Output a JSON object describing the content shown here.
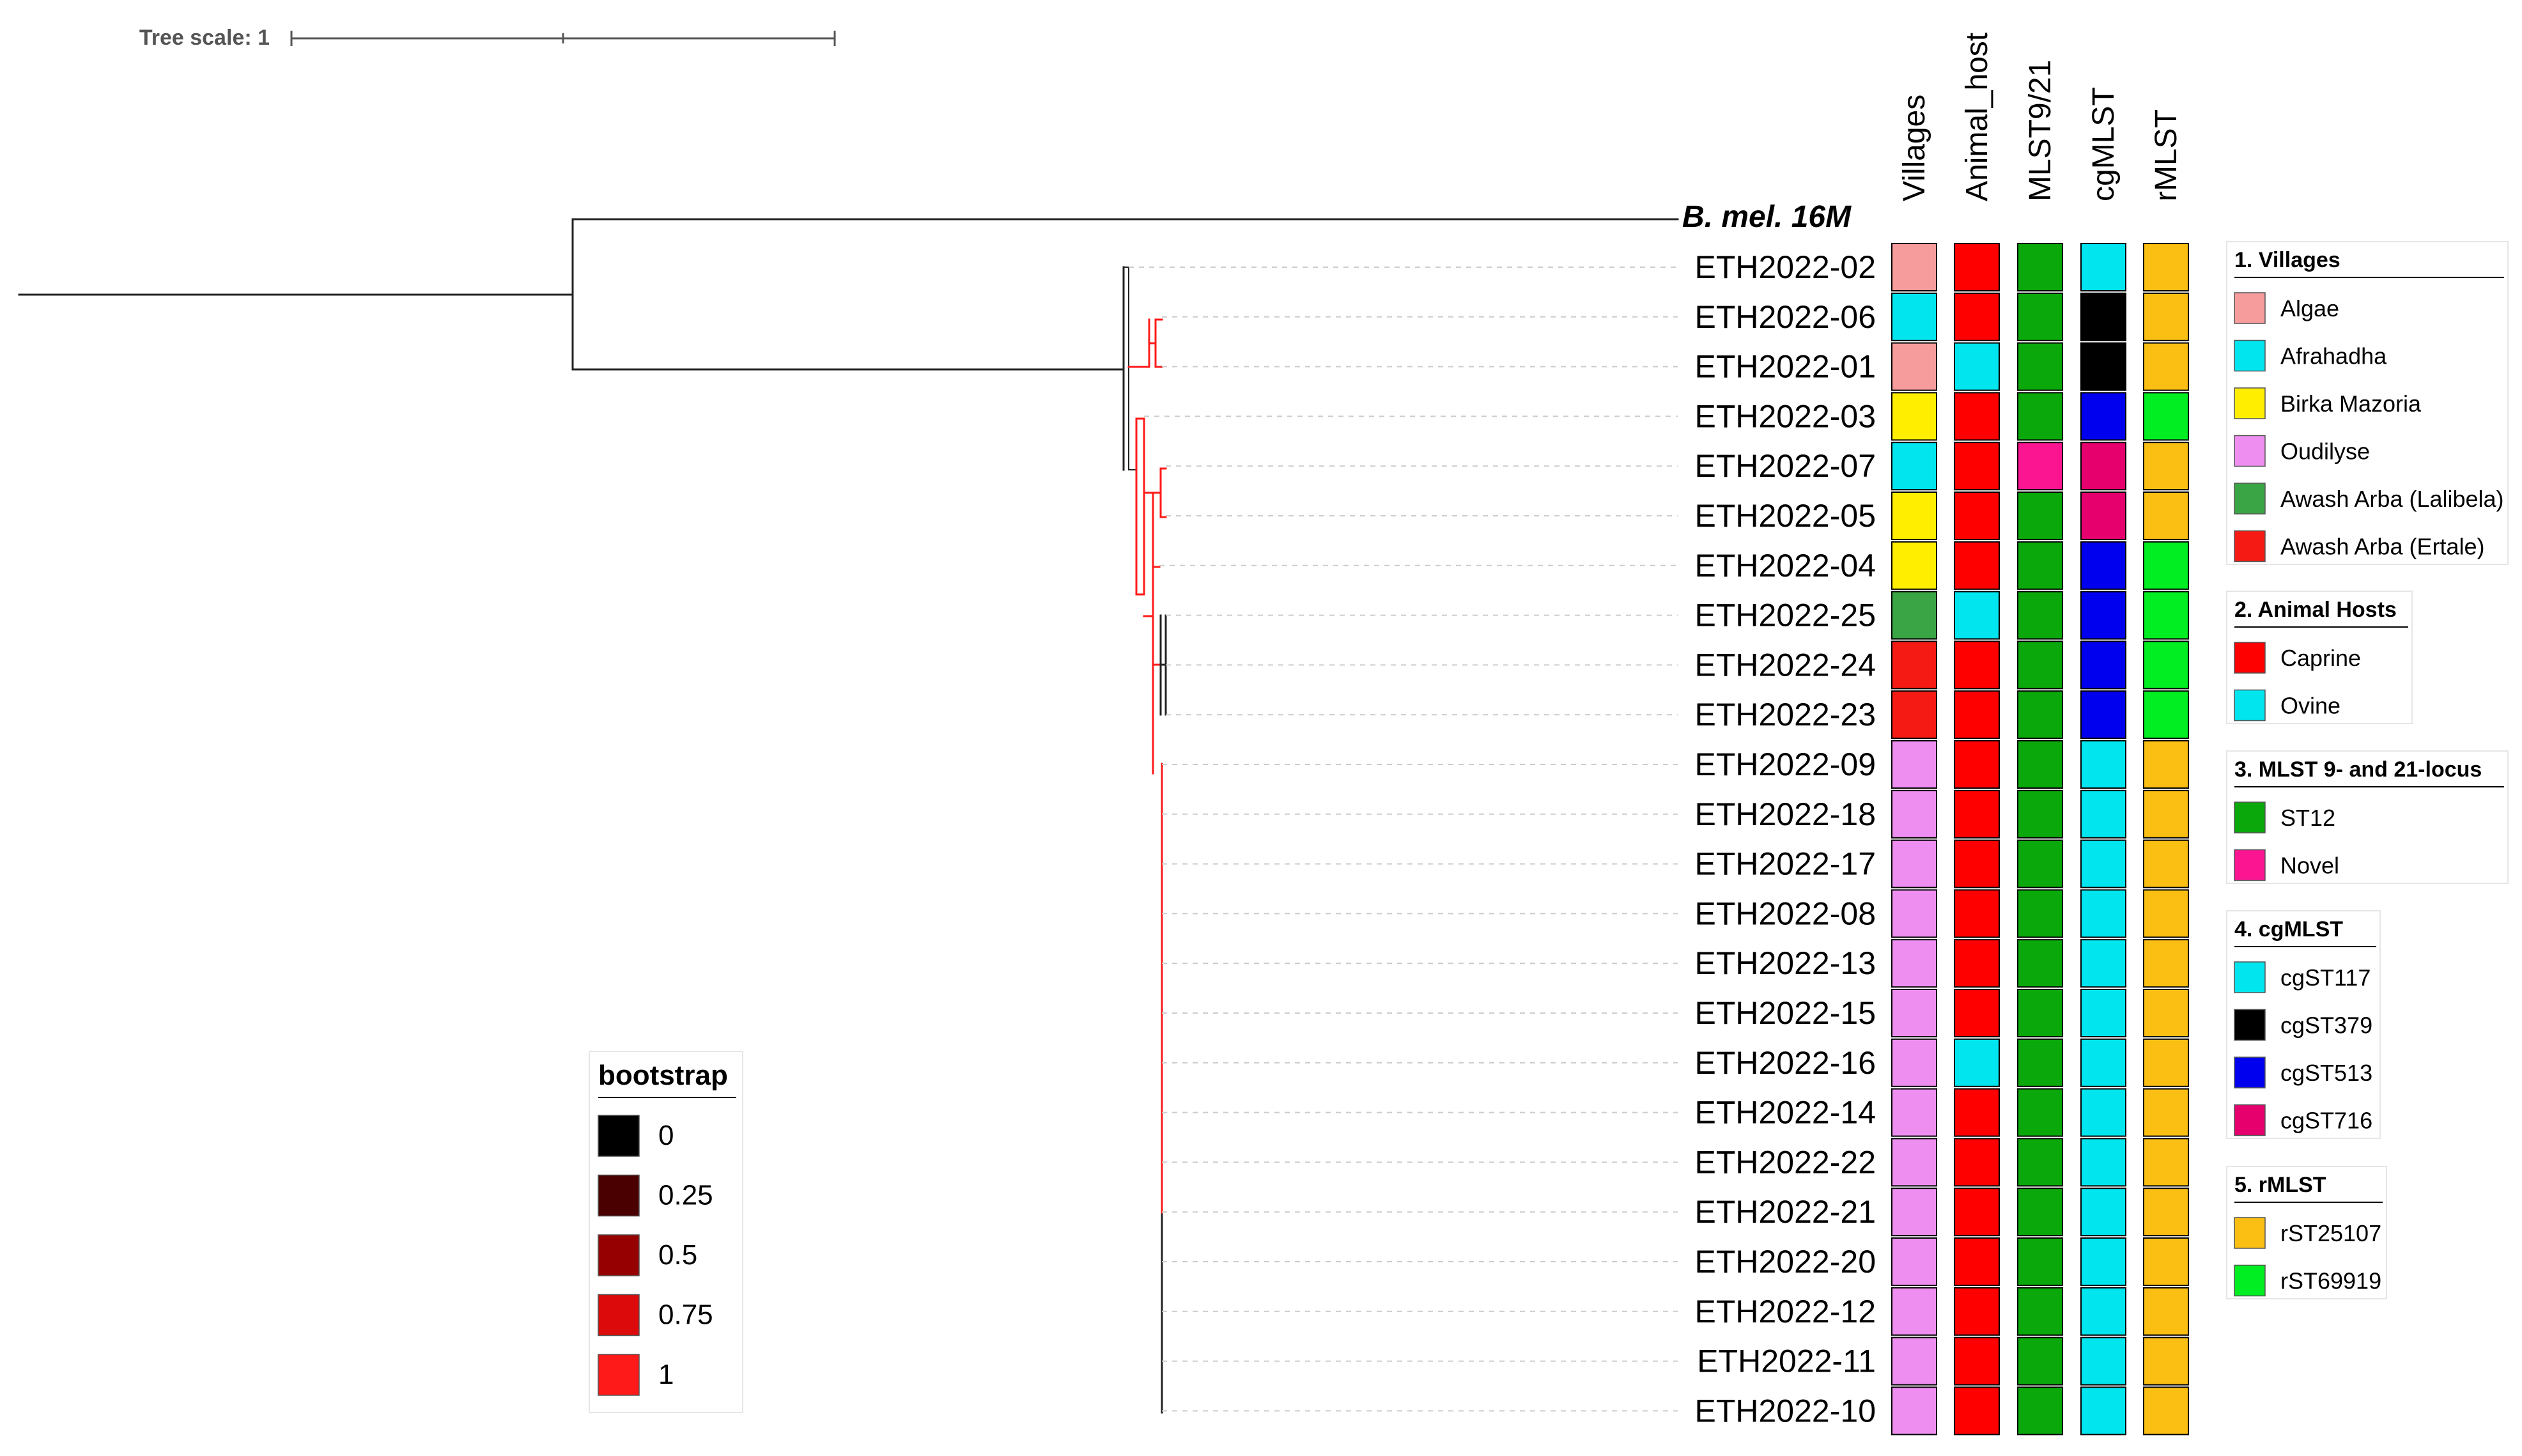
{
  "tree_scale": {
    "label": "Tree scale: 1"
  },
  "column_headers": [
    "Villages",
    "Animal_host",
    "MLST9/21",
    "cgMLST",
    "rMLST"
  ],
  "reference": {
    "label": "B. mel. 16M"
  },
  "strains": [
    {
      "id": "ETH2022-02",
      "village": "Algae",
      "host": "Caprine",
      "mlst": "ST12",
      "cgmlst": "cgST117",
      "rmlst": "rST25107"
    },
    {
      "id": "ETH2022-06",
      "village": "Afrahadha",
      "host": "Caprine",
      "mlst": "ST12",
      "cgmlst": "cgST379",
      "rmlst": "rST25107"
    },
    {
      "id": "ETH2022-01",
      "village": "Algae",
      "host": "Ovine",
      "mlst": "ST12",
      "cgmlst": "cgST379",
      "rmlst": "rST25107"
    },
    {
      "id": "ETH2022-03",
      "village": "Birka Mazoria",
      "host": "Caprine",
      "mlst": "ST12",
      "cgmlst": "cgST513",
      "rmlst": "rST69919"
    },
    {
      "id": "ETH2022-07",
      "village": "Afrahadha",
      "host": "Caprine",
      "mlst": "Novel",
      "cgmlst": "cgST716",
      "rmlst": "rST25107"
    },
    {
      "id": "ETH2022-05",
      "village": "Birka Mazoria",
      "host": "Caprine",
      "mlst": "ST12",
      "cgmlst": "cgST716",
      "rmlst": "rST25107"
    },
    {
      "id": "ETH2022-04",
      "village": "Birka Mazoria",
      "host": "Caprine",
      "mlst": "ST12",
      "cgmlst": "cgST513",
      "rmlst": "rST69919"
    },
    {
      "id": "ETH2022-25",
      "village": "Awash Arba (Lalibela)",
      "host": "Ovine",
      "mlst": "ST12",
      "cgmlst": "cgST513",
      "rmlst": "rST69919"
    },
    {
      "id": "ETH2022-24",
      "village": "Awash Arba (Ertale)",
      "host": "Caprine",
      "mlst": "ST12",
      "cgmlst": "cgST513",
      "rmlst": "rST69919"
    },
    {
      "id": "ETH2022-23",
      "village": "Awash Arba (Ertale)",
      "host": "Caprine",
      "mlst": "ST12",
      "cgmlst": "cgST513",
      "rmlst": "rST69919"
    },
    {
      "id": "ETH2022-09",
      "village": "Oudilyse",
      "host": "Caprine",
      "mlst": "ST12",
      "cgmlst": "cgST117",
      "rmlst": "rST25107"
    },
    {
      "id": "ETH2022-18",
      "village": "Oudilyse",
      "host": "Caprine",
      "mlst": "ST12",
      "cgmlst": "cgST117",
      "rmlst": "rST25107"
    },
    {
      "id": "ETH2022-17",
      "village": "Oudilyse",
      "host": "Caprine",
      "mlst": "ST12",
      "cgmlst": "cgST117",
      "rmlst": "rST25107"
    },
    {
      "id": "ETH2022-08",
      "village": "Oudilyse",
      "host": "Caprine",
      "mlst": "ST12",
      "cgmlst": "cgST117",
      "rmlst": "rST25107"
    },
    {
      "id": "ETH2022-13",
      "village": "Oudilyse",
      "host": "Caprine",
      "mlst": "ST12",
      "cgmlst": "cgST117",
      "rmlst": "rST25107"
    },
    {
      "id": "ETH2022-15",
      "village": "Oudilyse",
      "host": "Caprine",
      "mlst": "ST12",
      "cgmlst": "cgST117",
      "rmlst": "rST25107"
    },
    {
      "id": "ETH2022-16",
      "village": "Oudilyse",
      "host": "Ovine",
      "mlst": "ST12",
      "cgmlst": "cgST117",
      "rmlst": "rST25107"
    },
    {
      "id": "ETH2022-14",
      "village": "Oudilyse",
      "host": "Caprine",
      "mlst": "ST12",
      "cgmlst": "cgST117",
      "rmlst": "rST25107"
    },
    {
      "id": "ETH2022-22",
      "village": "Oudilyse",
      "host": "Caprine",
      "mlst": "ST12",
      "cgmlst": "cgST117",
      "rmlst": "rST25107"
    },
    {
      "id": "ETH2022-21",
      "village": "Oudilyse",
      "host": "Caprine",
      "mlst": "ST12",
      "cgmlst": "cgST117",
      "rmlst": "rST25107"
    },
    {
      "id": "ETH2022-20",
      "village": "Oudilyse",
      "host": "Caprine",
      "mlst": "ST12",
      "cgmlst": "cgST117",
      "rmlst": "rST25107"
    },
    {
      "id": "ETH2022-12",
      "village": "Oudilyse",
      "host": "Caprine",
      "mlst": "ST12",
      "cgmlst": "cgST117",
      "rmlst": "rST25107"
    },
    {
      "id": "ETH2022-11",
      "village": "Oudilyse",
      "host": "Caprine",
      "mlst": "ST12",
      "cgmlst": "cgST117",
      "rmlst": "rST25107"
    },
    {
      "id": "ETH2022-10",
      "village": "Oudilyse",
      "host": "Caprine",
      "mlst": "ST12",
      "cgmlst": "cgST117",
      "rmlst": "rST25107"
    }
  ],
  "legends": [
    {
      "title": "1. Villages",
      "key": "village",
      "items": [
        {
          "label": "Algae",
          "color": "#f79c9c"
        },
        {
          "label": "Afrahadha",
          "color": "#00e5ee"
        },
        {
          "label": "Birka Mazoria",
          "color": "#ffee00"
        },
        {
          "label": "Oudilyse",
          "color": "#ee8ef0"
        },
        {
          "label": "Awash Arba (Lalibela)",
          "color": "#3aa545"
        },
        {
          "label": "Awash Arba (Ertale)",
          "color": "#f51b14"
        }
      ]
    },
    {
      "title": "2. Animal Hosts",
      "key": "host",
      "items": [
        {
          "label": "Caprine",
          "color": "#ff0000"
        },
        {
          "label": "Ovine",
          "color": "#00e5ee"
        }
      ]
    },
    {
      "title": "3. MLST 9- and 21-locus",
      "key": "mlst",
      "items": [
        {
          "label": "ST12",
          "color": "#0aa80a"
        },
        {
          "label": "Novel",
          "color": "#fb1591"
        }
      ]
    },
    {
      "title": "4. cgMLST",
      "key": "cgmlst",
      "items": [
        {
          "label": "cgST117",
          "color": "#00e5ee"
        },
        {
          "label": "cgST379",
          "color": "#000000"
        },
        {
          "label": "cgST513",
          "color": "#0000ee"
        },
        {
          "label": "cgST716",
          "color": "#e5006e"
        }
      ]
    },
    {
      "title": "5. rMLST",
      "key": "rmlst",
      "items": [
        {
          "label": "rST25107",
          "color": "#fbbf14"
        },
        {
          "label": "rST69919",
          "color": "#00ee22"
        }
      ]
    }
  ],
  "bootstrap_legend": {
    "title": "bootstrap",
    "items": [
      {
        "label": "0",
        "color": "#000000"
      },
      {
        "label": "0.25",
        "color": "#4a0000"
      },
      {
        "label": "0.5",
        "color": "#960000"
      },
      {
        "label": "0.75",
        "color": "#dc0a0a"
      },
      {
        "label": "1",
        "color": "#ff1a1a"
      }
    ]
  }
}
